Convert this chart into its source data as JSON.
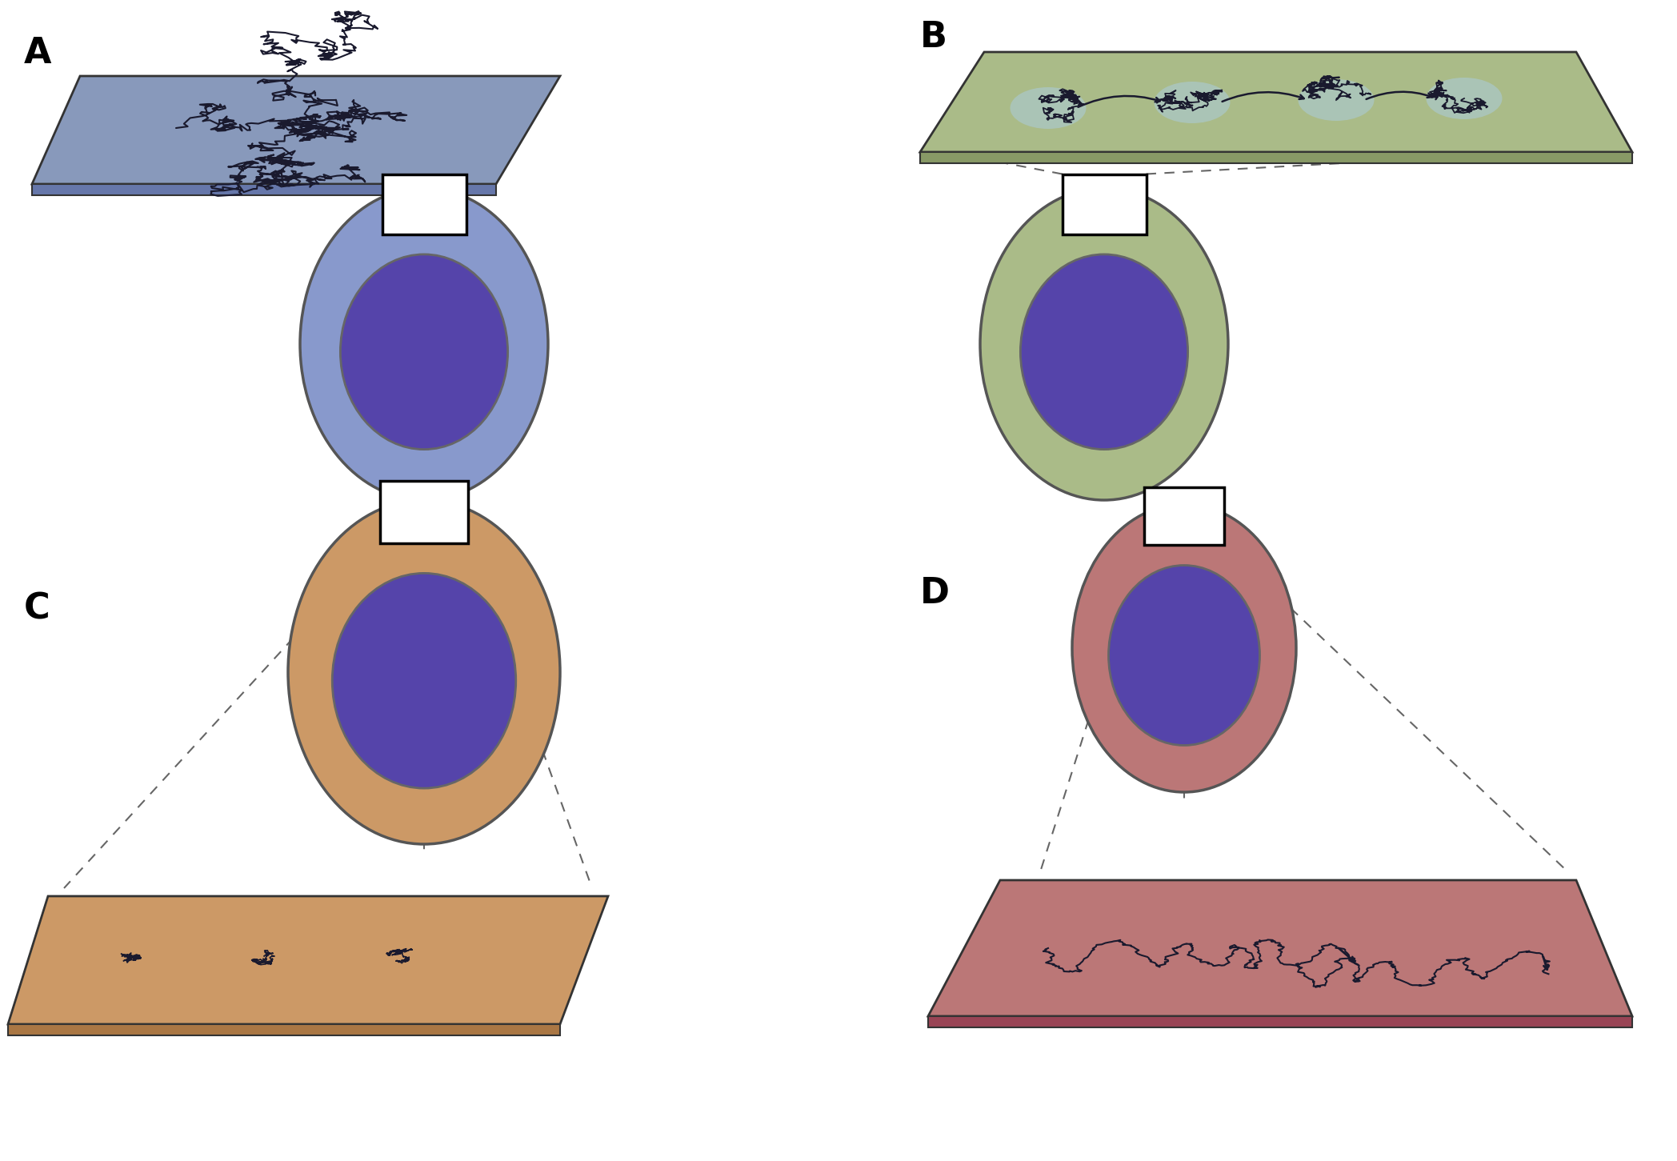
{
  "bg_color": "#ffffff",
  "panel_labels": [
    "A",
    "B",
    "C",
    "D"
  ],
  "cell_A_outer": "#8899cc",
  "cell_A_inner": "#5544aa",
  "cell_B_outer": "#aabb88",
  "cell_B_inner": "#5544aa",
  "cell_C_outer": "#cc9966",
  "cell_C_inner": "#5544aa",
  "cell_D_outer": "#bb7777",
  "cell_D_inner": "#5544aa",
  "mem_A_top": "#8899bb",
  "mem_A_side": "#6677aa",
  "mem_B_top": "#aabb88",
  "mem_B_side": "#889966",
  "mem_C_top": "#cc9966",
  "mem_C_side": "#aa7744",
  "mem_D_top": "#bb7777",
  "mem_D_side": "#994455",
  "track_color": "#1a1a2e",
  "blob_color": "#aaccdd",
  "dashed_color": "#666666",
  "label_fontsize": 32
}
